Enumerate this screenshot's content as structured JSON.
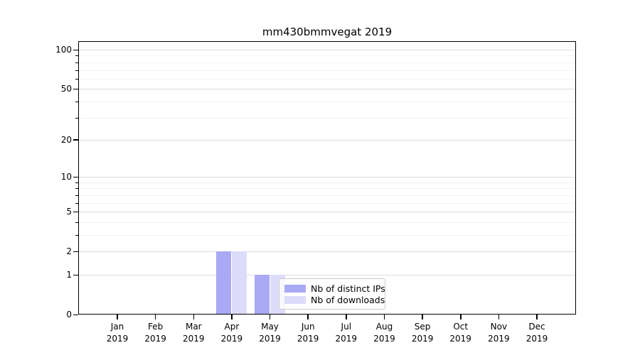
{
  "chart_data": {
    "type": "bar",
    "title": "mm430bmmvegat 2019",
    "categories": [
      {
        "month": "Jan",
        "year": "2019"
      },
      {
        "month": "Feb",
        "year": "2019"
      },
      {
        "month": "Mar",
        "year": "2019"
      },
      {
        "month": "Apr",
        "year": "2019"
      },
      {
        "month": "May",
        "year": "2019"
      },
      {
        "month": "Jun",
        "year": "2019"
      },
      {
        "month": "Jul",
        "year": "2019"
      },
      {
        "month": "Aug",
        "year": "2019"
      },
      {
        "month": "Sep",
        "year": "2019"
      },
      {
        "month": "Oct",
        "year": "2019"
      },
      {
        "month": "Nov",
        "year": "2019"
      },
      {
        "month": "Dec",
        "year": "2019"
      }
    ],
    "series": [
      {
        "name": "Nb of distinct IPs",
        "color": "#a9a9f5",
        "values": [
          0,
          0,
          0,
          2,
          1,
          0,
          0,
          0,
          0,
          0,
          0,
          0
        ]
      },
      {
        "name": "Nb of downloads",
        "color": "#dcdcfa",
        "values": [
          0,
          0,
          0,
          2,
          1,
          0,
          0,
          0,
          0,
          0,
          0,
          0
        ]
      }
    ],
    "xlabel": "",
    "ylabel": "",
    "y_scale": "log1p",
    "y_major_ticks": [
      0,
      1,
      2,
      5,
      10,
      20,
      50,
      100
    ],
    "y_minor_ticks": [
      3,
      4,
      6,
      7,
      8,
      9,
      30,
      40,
      60,
      70,
      80,
      90
    ],
    "ylim": [
      0,
      116
    ],
    "grid": true,
    "legend_position": "lower-center-inside"
  }
}
